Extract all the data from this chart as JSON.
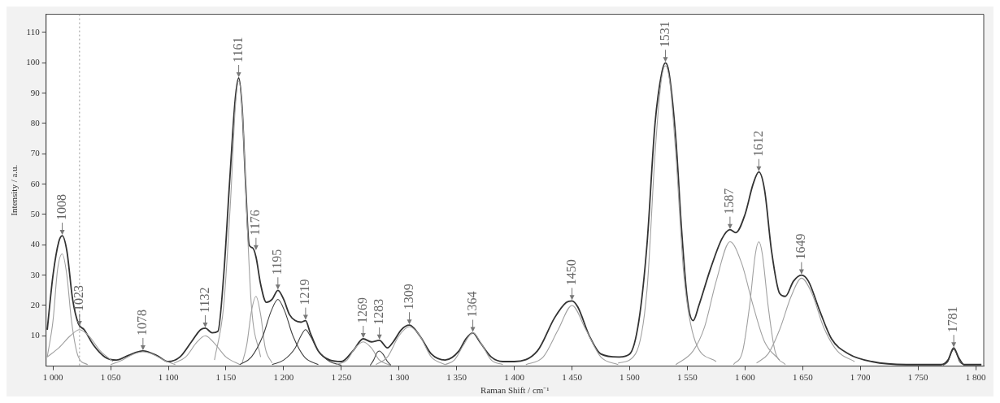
{
  "chart_data": {
    "type": "line",
    "xlabel": "Raman Shift / cm⁻¹",
    "ylabel": "Intensity / a.u.",
    "xlim": [
      994,
      1807
    ],
    "ylim": [
      0,
      116
    ],
    "xticks": [
      {
        "value": 1000,
        "label": "1 000"
      },
      {
        "value": 1050,
        "label": "1 050"
      },
      {
        "value": 1100,
        "label": "1 100"
      },
      {
        "value": 1150,
        "label": "1 150"
      },
      {
        "value": 1200,
        "label": "1 200"
      },
      {
        "value": 1250,
        "label": "1 250"
      },
      {
        "value": 1300,
        "label": "1 300"
      },
      {
        "value": 1350,
        "label": "1 350"
      },
      {
        "value": 1400,
        "label": "1 400"
      },
      {
        "value": 1450,
        "label": "1 450"
      },
      {
        "value": 1500,
        "label": "1 500"
      },
      {
        "value": 1550,
        "label": "1 550"
      },
      {
        "value": 1600,
        "label": "1 600"
      },
      {
        "value": 1650,
        "label": "1 650"
      },
      {
        "value": 1700,
        "label": "1 700"
      },
      {
        "value": 1750,
        "label": "1 750"
      },
      {
        "value": 1800,
        "label": "1 800"
      }
    ],
    "yticks": [
      10,
      20,
      30,
      40,
      50,
      60,
      70,
      80,
      90,
      100,
      110
    ],
    "grid": false,
    "legend": false,
    "marker": "none",
    "line_style": "solid",
    "series": [
      {
        "color": "#333333",
        "x": [
          995,
          1000,
          1005,
          1008,
          1012,
          1017,
          1022,
          1027,
          1035,
          1045,
          1055,
          1065,
          1078,
          1090,
          1100,
          1110,
          1120,
          1128,
          1132,
          1138,
          1143,
          1148,
          1153,
          1158,
          1161,
          1164,
          1167,
          1170,
          1173,
          1176,
          1180,
          1185,
          1190,
          1195,
          1200,
          1205,
          1210,
          1215,
          1219,
          1223,
          1230,
          1240,
          1250,
          1260,
          1269,
          1276,
          1283,
          1290,
          1295,
          1302,
          1309,
          1318,
          1328,
          1340,
          1352,
          1358,
          1364,
          1370,
          1380,
          1390,
          1400,
          1420,
          1435,
          1445,
          1450,
          1455,
          1465,
          1475,
          1490,
          1500,
          1508,
          1515,
          1522,
          1528,
          1531,
          1534,
          1540,
          1545,
          1550,
          1555,
          1560,
          1570,
          1580,
          1587,
          1592,
          1600,
          1607,
          1612,
          1617,
          1623,
          1630,
          1635,
          1642,
          1649,
          1655,
          1665,
          1675,
          1690,
          1710,
          1740,
          1770,
          1776,
          1781,
          1785,
          1790,
          1805
        ],
        "values": [
          12,
          30,
          41,
          43,
          38,
          22,
          14,
          12,
          7,
          3,
          2,
          3.5,
          5,
          3.5,
          1.5,
          3,
          8,
          12,
          12.5,
          11,
          11.5,
          30,
          60,
          88,
          95,
          85,
          60,
          40,
          39,
          36,
          27,
          21,
          22,
          25,
          22,
          17,
          15,
          14.5,
          15,
          11,
          5,
          2,
          1.5,
          5,
          9,
          8,
          8.5,
          6,
          8,
          12,
          13.5,
          10,
          4,
          2,
          5,
          9,
          11,
          8,
          3,
          1.5,
          1.5,
          5,
          16,
          21,
          21.5,
          19.5,
          10,
          4,
          3,
          4,
          15,
          40,
          80,
          97,
          100,
          97,
          75,
          45,
          22,
          15,
          20,
          32,
          42,
          45,
          44,
          50,
          60,
          64,
          58,
          38,
          24,
          23,
          28,
          30,
          28,
          18,
          9,
          4,
          1.5,
          0.5,
          0.5,
          2,
          6,
          3,
          0.5,
          0.5
        ]
      },
      {
        "color": "#a0a0a0",
        "x": [
          995,
          1000,
          1004,
          1008,
          1012,
          1016,
          1022,
          1030
        ],
        "values": [
          3,
          15,
          32,
          37,
          30,
          15,
          3,
          0.5
        ]
      },
      {
        "color": "#a0a0a0",
        "x": [
          995,
          1005,
          1015,
          1023,
          1031,
          1041,
          1052
        ],
        "values": [
          3,
          6,
          10,
          12,
          10,
          5,
          1.5
        ]
      },
      {
        "color": "#a0a0a0",
        "x": [
          1050,
          1060,
          1070,
          1078,
          1086,
          1096,
          1106
        ],
        "values": [
          0.5,
          2,
          4,
          4.7,
          4,
          2,
          0.5
        ]
      },
      {
        "color": "#a0a0a0",
        "x": [
          1105,
          1115,
          1125,
          1132,
          1140,
          1150,
          1162
        ],
        "values": [
          1,
          3,
          8,
          10,
          7.5,
          3,
          0.5
        ]
      },
      {
        "color": "#a0a0a0",
        "x": [
          1140,
          1148,
          1154,
          1158,
          1161,
          1164,
          1168,
          1172,
          1180
        ],
        "values": [
          2,
          20,
          55,
          85,
          94,
          85,
          50,
          20,
          3
        ]
      },
      {
        "color": "#a0a0a0",
        "x": [
          1164,
          1168,
          1172,
          1176,
          1180,
          1184,
          1190
        ],
        "values": [
          1,
          7,
          18,
          23,
          17,
          6,
          1
        ]
      },
      {
        "color": "#404040",
        "x": [
          1162,
          1172,
          1182,
          1189,
          1195,
          1201,
          1208,
          1218,
          1230
        ],
        "values": [
          0.5,
          3,
          10,
          18,
          22,
          18,
          10,
          3,
          0.5
        ]
      },
      {
        "color": "#404040",
        "x": [
          1190,
          1200,
          1210,
          1215,
          1219,
          1223,
          1230,
          1240,
          1250
        ],
        "values": [
          0.5,
          2,
          6,
          10,
          12,
          10,
          5,
          1.5,
          0.3
        ]
      },
      {
        "color": "#a0a0a0",
        "x": [
          1245,
          1255,
          1262,
          1269,
          1276,
          1283,
          1292
        ],
        "values": [
          0.5,
          2,
          6,
          8,
          6,
          2,
          0.3
        ]
      },
      {
        "color": "#404040",
        "x": [
          1275,
          1278,
          1281,
          1283,
          1286,
          1290,
          1293
        ],
        "values": [
          0.3,
          2,
          4.5,
          5,
          4,
          1.5,
          0.3
        ]
      },
      {
        "color": "#a0a0a0",
        "x": [
          1280,
          1290,
          1300,
          1309,
          1318,
          1328,
          1340
        ],
        "values": [
          0.5,
          3,
          10,
          13,
          10,
          3,
          0.5
        ]
      },
      {
        "color": "#a0a0a0",
        "x": [
          1340,
          1348,
          1356,
          1364,
          1372,
          1380,
          1390
        ],
        "values": [
          0.5,
          2,
          7,
          11,
          7,
          2,
          0.5
        ]
      },
      {
        "color": "#a0a0a0",
        "x": [
          1410,
          1425,
          1438,
          1450,
          1462,
          1475,
          1490
        ],
        "values": [
          0.5,
          3,
          12,
          20,
          12,
          3,
          0.5
        ]
      },
      {
        "color": "#a0a0a0",
        "x": [
          1490,
          1505,
          1515,
          1522,
          1527,
          1531,
          1535,
          1540,
          1547,
          1557,
          1575
        ],
        "values": [
          1,
          4,
          25,
          70,
          93,
          99,
          93,
          70,
          30,
          8,
          1.5
        ]
      },
      {
        "color": "#a0a0a0",
        "x": [
          1540,
          1555,
          1565,
          1575,
          1587,
          1597,
          1607,
          1617,
          1630
        ],
        "values": [
          0.5,
          5,
          13,
          28,
          41,
          34,
          20,
          8,
          2
        ]
      },
      {
        "color": "#a0a0a0",
        "x": [
          1590,
          1598,
          1604,
          1609,
          1612,
          1615,
          1620,
          1626,
          1635
        ],
        "values": [
          0.5,
          5,
          20,
          37,
          41,
          37,
          20,
          5,
          0.5
        ]
      },
      {
        "color": "#a0a0a0",
        "x": [
          1610,
          1620,
          1630,
          1640,
          1649,
          1658,
          1668,
          1680,
          1695
        ],
        "values": [
          1,
          4,
          12,
          23,
          29,
          24,
          13,
          5,
          1.5
        ]
      },
      {
        "color": "#404040",
        "x": [
          1772,
          1776,
          1779,
          1781,
          1783,
          1786,
          1790
        ],
        "values": [
          0.3,
          1.5,
          4.5,
          5.5,
          4.5,
          1.5,
          0.3
        ]
      }
    ],
    "ref_lines": [
      {
        "axis": "x",
        "value": 1023,
        "color": "#999999",
        "line_style": "dotted"
      }
    ],
    "annotations": [
      {
        "text": "1008",
        "x": 1008,
        "y": 43
      },
      {
        "text": "1023",
        "x": 1023,
        "y": 13
      },
      {
        "text": "1078",
        "x": 1078,
        "y": 5
      },
      {
        "text": "1132",
        "x": 1132,
        "y": 12.5
      },
      {
        "text": "1161",
        "x": 1161,
        "y": 95
      },
      {
        "text": "1176",
        "x": 1176,
        "y": 38
      },
      {
        "text": "1195",
        "x": 1195,
        "y": 25
      },
      {
        "text": "1219",
        "x": 1219,
        "y": 15
      },
      {
        "text": "1269",
        "x": 1269,
        "y": 9
      },
      {
        "text": "1283",
        "x": 1283,
        "y": 8.5
      },
      {
        "text": "1309",
        "x": 1309,
        "y": 13.5
      },
      {
        "text": "1364",
        "x": 1364,
        "y": 11
      },
      {
        "text": "1450",
        "x": 1450,
        "y": 21.5
      },
      {
        "text": "1531",
        "x": 1531,
        "y": 100
      },
      {
        "text": "1587",
        "x": 1587,
        "y": 45
      },
      {
        "text": "1612",
        "x": 1612,
        "y": 64
      },
      {
        "text": "1649",
        "x": 1649,
        "y": 30
      },
      {
        "text": "1781",
        "x": 1781,
        "y": 6
      }
    ]
  }
}
